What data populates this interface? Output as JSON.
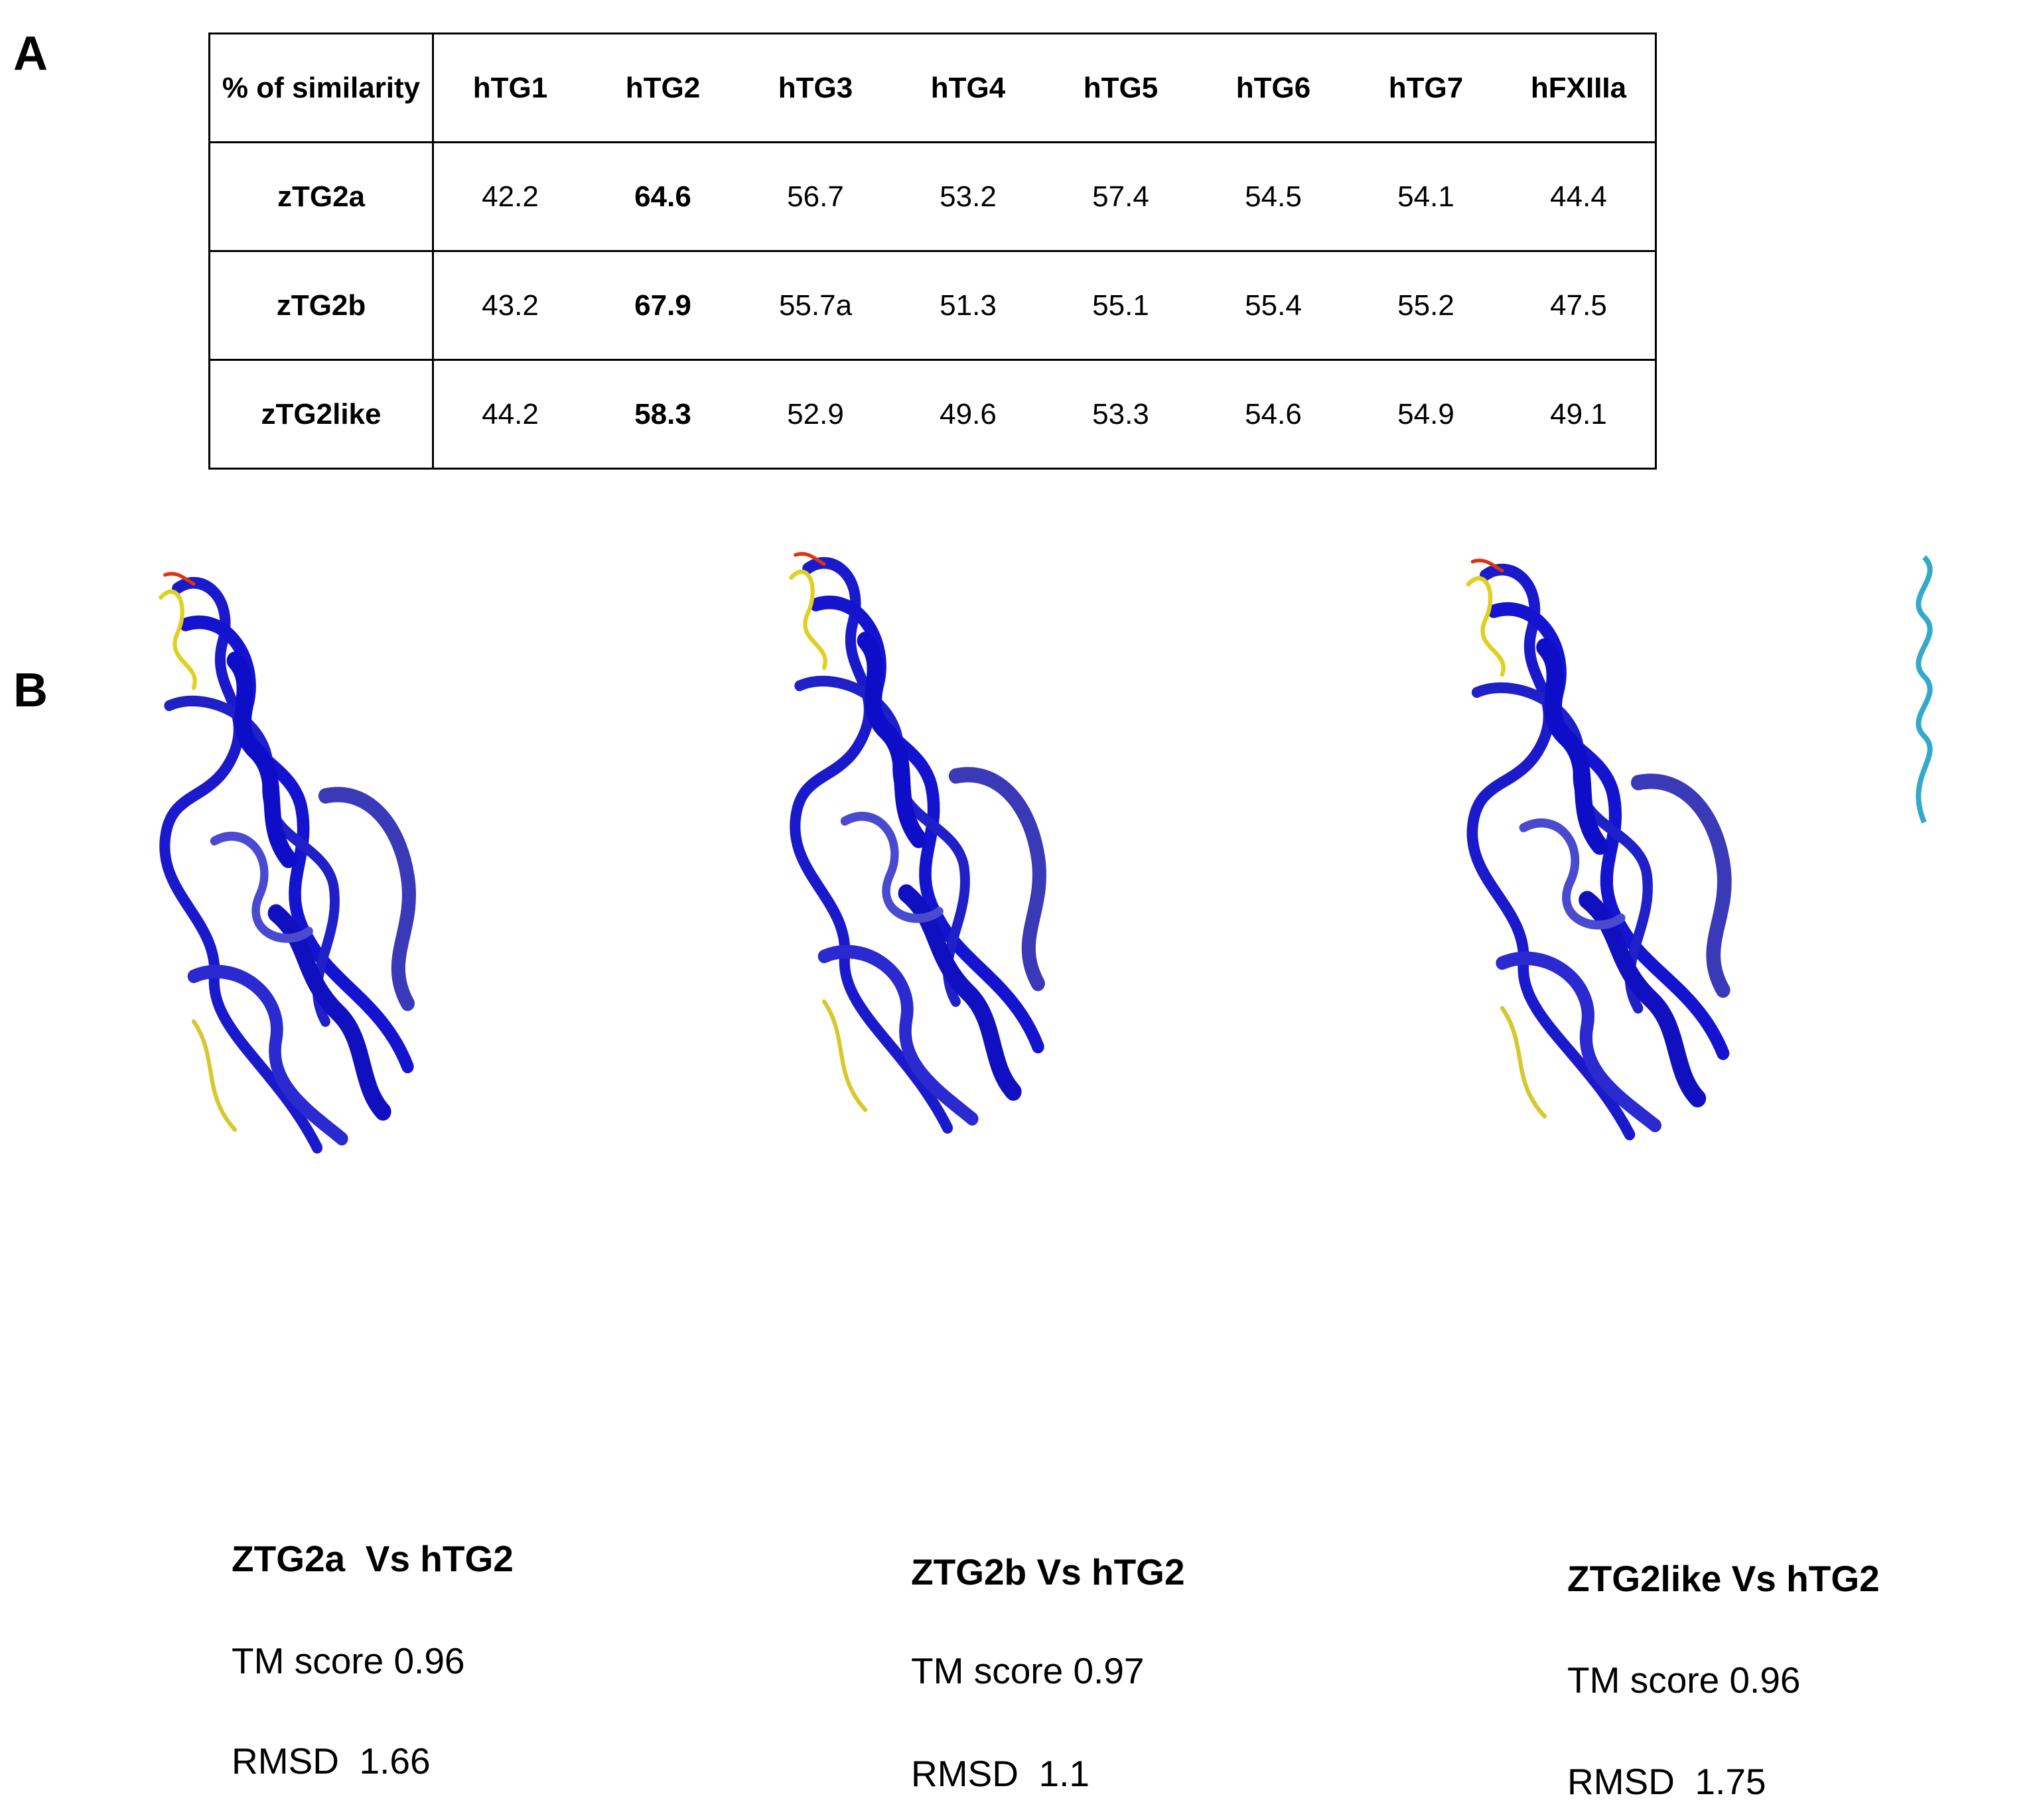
{
  "panel_a": {
    "label": "A",
    "table": {
      "header": [
        "% of similarity",
        "hTG1",
        "hTG2",
        "hTG3",
        "hTG4",
        "hTG5",
        "hTG6",
        "hTG7",
        "hFXIIIa"
      ],
      "rows": [
        [
          "zTG2a",
          "42.2",
          "64.6",
          "56.7",
          "53.2",
          "57.4",
          "54.5",
          "54.1",
          "44.4"
        ],
        [
          "zTG2b",
          "43.2",
          "67.9",
          "55.7a",
          "51.3",
          "55.1",
          "55.4",
          "55.2",
          "47.5"
        ],
        [
          "zTG2like",
          "44.2",
          "58.3",
          "52.9",
          "49.6",
          "53.3",
          "54.6",
          "54.9",
          "49.1"
        ]
      ]
    }
  },
  "panel_b": {
    "label": "B",
    "structures": [
      {
        "title": "ZTG2a  Vs hTG2",
        "tm_score": "TM score 0.96",
        "rmsd": "RMSD  1.66"
      },
      {
        "title": "ZTG2b Vs hTG2",
        "tm_score": "TM score 0.97",
        "rmsd": "RMSD  1.1"
      },
      {
        "title": "ZTG2like Vs hTG2",
        "tm_score": "TM score 0.96",
        "rmsd": "RMSD  1.75"
      }
    ]
  }
}
